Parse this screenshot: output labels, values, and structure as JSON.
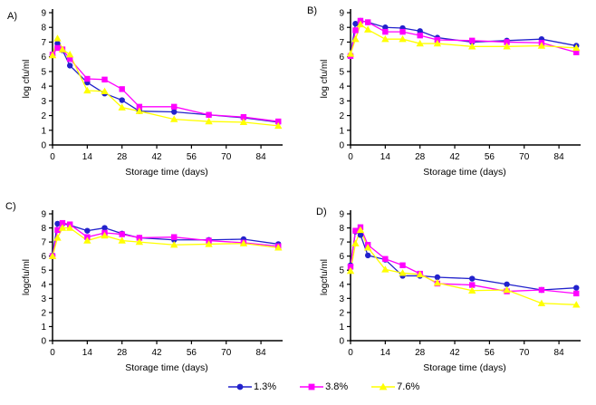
{
  "legend": {
    "items": [
      {
        "label": "1.3%",
        "color": "#2222CC",
        "marker": "circle"
      },
      {
        "label": "3.8%",
        "color": "#FF00FF",
        "marker": "square"
      },
      {
        "label": "7.6%",
        "color": "#FFFF00",
        "marker": "triangle"
      }
    ]
  },
  "chart_data": [
    {
      "panel_label": "A)",
      "type": "line",
      "title": "",
      "xlabel": "Storage time (days)",
      "ylabel": "log cfu/ml",
      "x": [
        0,
        2,
        4,
        7,
        14,
        21,
        28,
        35,
        49,
        63,
        77,
        91
      ],
      "xlim": [
        0,
        92
      ],
      "ylim": [
        0,
        9
      ],
      "x_ticks": [
        0,
        14,
        28,
        42,
        56,
        70,
        84
      ],
      "y_ticks": [
        0,
        1,
        2,
        3,
        4,
        5,
        6,
        7,
        8,
        9
      ],
      "grid": false,
      "series": [
        {
          "name": "1.3%",
          "color": "#2222CC",
          "marker": "circle",
          "values": [
            6.1,
            6.9,
            6.45,
            5.4,
            4.25,
            3.5,
            3.05,
            2.3,
            2.25,
            2.05,
            1.85,
            1.55
          ]
        },
        {
          "name": "3.8%",
          "color": "#FF00FF",
          "marker": "square",
          "values": [
            6.15,
            6.6,
            6.5,
            5.85,
            4.5,
            4.45,
            3.8,
            2.6,
            2.6,
            2.05,
            1.9,
            1.6
          ]
        },
        {
          "name": "7.6%",
          "color": "#FFFF00",
          "marker": "triangle",
          "values": [
            6.1,
            7.25,
            6.5,
            6.15,
            3.7,
            3.65,
            2.55,
            2.3,
            1.75,
            1.6,
            1.55,
            1.3
          ]
        }
      ]
    },
    {
      "panel_label": "B)",
      "type": "line",
      "title": "",
      "xlabel": "Storage time (days)",
      "ylabel": "log cfu/ml",
      "x": [
        0,
        2,
        4,
        7,
        14,
        21,
        28,
        35,
        49,
        63,
        77,
        91
      ],
      "xlim": [
        0,
        92
      ],
      "ylim": [
        0,
        9
      ],
      "x_ticks": [
        0,
        14,
        28,
        42,
        56,
        70,
        84
      ],
      "y_ticks": [
        0,
        1,
        2,
        3,
        4,
        5,
        6,
        7,
        8,
        9
      ],
      "grid": false,
      "series": [
        {
          "name": "1.3%",
          "color": "#2222CC",
          "marker": "circle",
          "values": [
            6.1,
            8.25,
            8.45,
            8.35,
            8.0,
            7.95,
            7.75,
            7.3,
            7.0,
            7.1,
            7.2,
            6.75
          ]
        },
        {
          "name": "3.8%",
          "color": "#FF00FF",
          "marker": "square",
          "values": [
            6.05,
            7.8,
            8.45,
            8.35,
            7.7,
            7.7,
            7.45,
            7.15,
            7.1,
            7.0,
            6.95,
            6.3
          ]
        },
        {
          "name": "7.6%",
          "color": "#FFFF00",
          "marker": "triangle",
          "values": [
            6.2,
            7.2,
            8.2,
            7.85,
            7.2,
            7.2,
            6.9,
            6.9,
            6.7,
            6.7,
            6.75,
            6.6
          ]
        }
      ]
    },
    {
      "panel_label": "C)",
      "type": "line",
      "title": "",
      "xlabel": "Storage time (days)",
      "ylabel": "logcfu/ml",
      "x": [
        0,
        2,
        4,
        7,
        14,
        21,
        28,
        35,
        49,
        63,
        77,
        91
      ],
      "xlim": [
        0,
        92
      ],
      "ylim": [
        0,
        9
      ],
      "x_ticks": [
        0,
        14,
        28,
        42,
        56,
        70,
        84
      ],
      "y_ticks": [
        0,
        1,
        2,
        3,
        4,
        5,
        6,
        7,
        8,
        9
      ],
      "grid": false,
      "series": [
        {
          "name": "1.3%",
          "color": "#2222CC",
          "marker": "circle",
          "values": [
            6.05,
            8.3,
            8.3,
            8.2,
            7.8,
            8.0,
            7.6,
            7.3,
            7.15,
            7.15,
            7.2,
            6.85
          ]
        },
        {
          "name": "3.8%",
          "color": "#FF00FF",
          "marker": "square",
          "values": [
            6.0,
            7.85,
            8.35,
            8.25,
            7.35,
            7.65,
            7.55,
            7.3,
            7.35,
            7.1,
            6.95,
            6.7
          ]
        },
        {
          "name": "7.6%",
          "color": "#FFFF00",
          "marker": "triangle",
          "values": [
            6.0,
            7.3,
            8.0,
            8.0,
            7.1,
            7.45,
            7.1,
            7.0,
            6.8,
            6.85,
            6.9,
            6.6
          ]
        }
      ]
    },
    {
      "panel_label": "D)",
      "type": "line",
      "title": "",
      "xlabel": "Storage time (days)",
      "ylabel": "logcfu/ml",
      "x": [
        0,
        2,
        4,
        7,
        14,
        21,
        28,
        35,
        49,
        63,
        77,
        91
      ],
      "xlim": [
        0,
        92
      ],
      "ylim": [
        0,
        9
      ],
      "x_ticks": [
        0,
        14,
        28,
        42,
        56,
        70,
        84
      ],
      "y_ticks": [
        0,
        1,
        2,
        3,
        4,
        5,
        6,
        7,
        8,
        9
      ],
      "grid": false,
      "series": [
        {
          "name": "1.3%",
          "color": "#2222CC",
          "marker": "circle",
          "values": [
            5.35,
            7.75,
            7.5,
            6.05,
            5.75,
            4.6,
            4.6,
            4.5,
            4.4,
            4.0,
            3.6,
            3.75
          ]
        },
        {
          "name": "3.8%",
          "color": "#FF00FF",
          "marker": "square",
          "values": [
            5.25,
            7.8,
            8.05,
            6.8,
            5.8,
            5.35,
            4.75,
            4.05,
            3.95,
            3.5,
            3.6,
            3.35
          ]
        },
        {
          "name": "7.6%",
          "color": "#FFFF00",
          "marker": "triangle",
          "values": [
            4.95,
            6.9,
            7.85,
            6.6,
            5.05,
            4.8,
            4.7,
            4.1,
            3.55,
            3.6,
            2.65,
            2.55
          ]
        }
      ]
    }
  ]
}
